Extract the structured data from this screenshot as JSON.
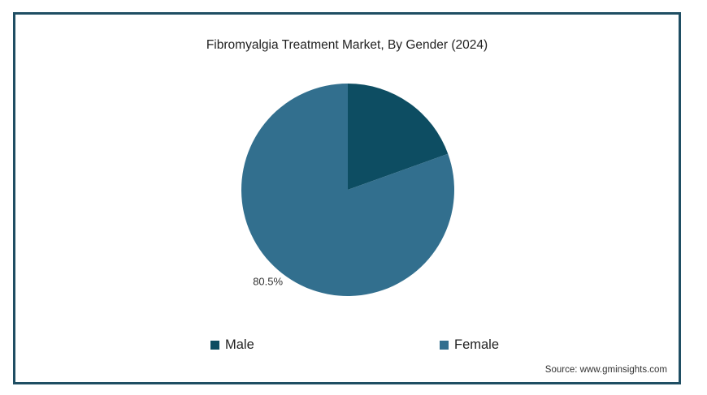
{
  "chart_data": {
    "type": "pie",
    "title": "Fibromyalgia Treatment Market, By Gender (2024)",
    "categories": [
      "Male",
      "Female"
    ],
    "values": [
      19.5,
      80.5
    ],
    "unit": "%",
    "colors": [
      "#0d4d62",
      "#326f8e"
    ],
    "slice_labels": [
      "",
      "80.5%"
    ],
    "legend_position": "bottom"
  },
  "source": "Source: www.gminsights.com"
}
